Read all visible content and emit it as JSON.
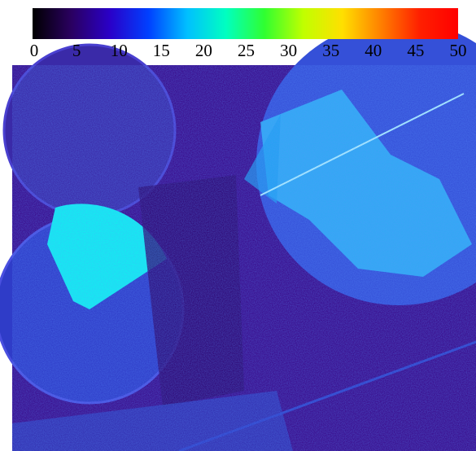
{
  "chart_data": {
    "type": "colorbar",
    "xlim": [
      0,
      50
    ],
    "xticks": [
      0,
      5,
      10,
      15,
      20,
      25,
      30,
      35,
      40,
      45,
      50
    ],
    "colormap": [
      "#000000",
      "#2a0060",
      "#2a00c8",
      "#0040ff",
      "#00c0ff",
      "#00ffc0",
      "#30ff30",
      "#c0ff00",
      "#ffe000",
      "#ff8000",
      "#ff2000",
      "#ff0000"
    ]
  }
}
